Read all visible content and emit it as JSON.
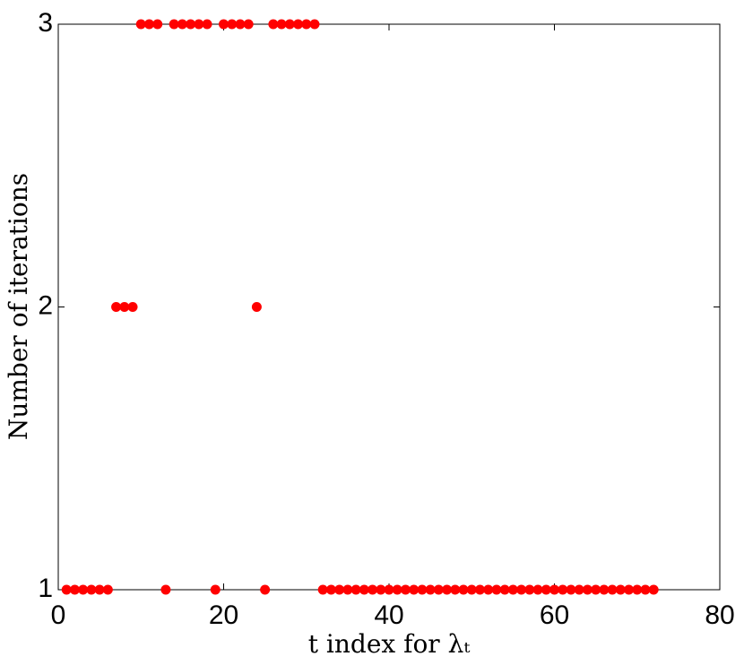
{
  "chart_data": {
    "type": "scatter",
    "xlabel": "t index for λₜ",
    "ylabel": "Number of iterations",
    "x": [
      1,
      2,
      3,
      4,
      5,
      6,
      7,
      8,
      9,
      10,
      11,
      12,
      13,
      14,
      15,
      16,
      17,
      18,
      19,
      20,
      21,
      22,
      23,
      24,
      25,
      26,
      27,
      28,
      29,
      30,
      31,
      32,
      33,
      34,
      35,
      36,
      37,
      38,
      39,
      40,
      41,
      42,
      43,
      44,
      45,
      46,
      47,
      48,
      49,
      50,
      51,
      52,
      53,
      54,
      55,
      56,
      57,
      58,
      59,
      60,
      61,
      62,
      63,
      64,
      65,
      66,
      67,
      68,
      69,
      70,
      71,
      72
    ],
    "values": [
      1,
      1,
      1,
      1,
      1,
      1,
      2,
      2,
      2,
      3,
      3,
      3,
      1,
      3,
      3,
      3,
      3,
      3,
      1,
      3,
      3,
      3,
      3,
      2,
      1,
      3,
      3,
      3,
      3,
      3,
      3,
      1,
      1,
      1,
      1,
      1,
      1,
      1,
      1,
      1,
      1,
      1,
      1,
      1,
      1,
      1,
      1,
      1,
      1,
      1,
      1,
      1,
      1,
      1,
      1,
      1,
      1,
      1,
      1,
      1,
      1,
      1,
      1,
      1,
      1,
      1,
      1,
      1,
      1,
      1,
      1,
      1
    ],
    "color": "#ff0000",
    "xlim": [
      0,
      80
    ],
    "xticks": [
      0,
      20,
      40,
      60,
      80
    ],
    "ylim": [
      1,
      3
    ],
    "yticks": [
      1,
      2,
      3
    ]
  }
}
